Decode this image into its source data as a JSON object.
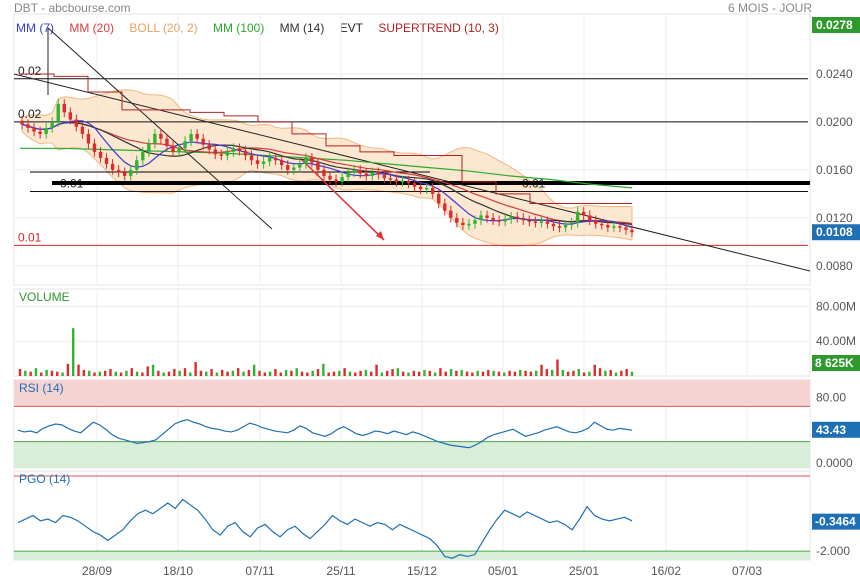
{
  "header": {
    "ticker_source": "DBT - abcbourse.com",
    "period": "6 MOIS - JOUR"
  },
  "legend": [
    {
      "label": "MM (7)",
      "color": "#3b3bd8"
    },
    {
      "label": "MM (20)",
      "color": "#d83c3c"
    },
    {
      "label": "BOLL (20, 2)",
      "color": "#e8a060"
    },
    {
      "label": "MM (100)",
      "color": "#2aaa2a"
    },
    {
      "label": "MM (14)",
      "color": "#333333"
    },
    {
      "label": "EVT",
      "color": "#222222"
    },
    {
      "label": "SUPERTREND (10, 3)",
      "color": "#b22222"
    }
  ],
  "colors": {
    "up": "#2fb52f",
    "down": "#dd2a2a",
    "accent": "#1f6fb5",
    "last_price_bg": "#1f6fb5",
    "top_badge_bg": "#2e9a2e",
    "volume_badge_bg": "#2e9a2e",
    "rsi_line": "#1f6fb5",
    "pgo_line": "#1f6fb5",
    "overbought_fill": "#f6d3d3",
    "oversold_fill": "#d8eed8"
  },
  "chart_data": [
    {
      "type": "candlestick",
      "name": "price",
      "x_tick_labels": [
        "28/09",
        "18/10",
        "07/11",
        "25/11",
        "15/12",
        "05/01",
        "25/01",
        "16/02",
        "07/03"
      ],
      "y_tick_labels": [
        "0.0278",
        "0.0240",
        "0.0200",
        "0.0160",
        "0.0120",
        "0.0108",
        "0.0080"
      ],
      "ylim": [
        0.0064,
        0.029
      ],
      "last_price_label": "0.0108",
      "top_badge_label": "0.0278",
      "hline_labels": [
        {
          "text": "0.02",
          "value": 0.0236
        },
        {
          "text": "0.02",
          "value": 0.02
        },
        {
          "text": "0.01",
          "value": 0.0142
        },
        {
          "text": "0.01",
          "value": 0.0142
        },
        {
          "text": "0.01",
          "value": 0.0097
        }
      ],
      "close": [
        0.0198,
        0.0195,
        0.0192,
        0.019,
        0.0195,
        0.02,
        0.0215,
        0.0208,
        0.0202,
        0.0196,
        0.019,
        0.0182,
        0.0175,
        0.017,
        0.0165,
        0.016,
        0.0158,
        0.0155,
        0.016,
        0.0168,
        0.0175,
        0.0182,
        0.019,
        0.0186,
        0.018,
        0.0175,
        0.0178,
        0.0184,
        0.019,
        0.0186,
        0.0181,
        0.0177,
        0.0173,
        0.0172,
        0.0175,
        0.0178,
        0.0176,
        0.0172,
        0.0168,
        0.0165,
        0.0167,
        0.017,
        0.0168,
        0.0164,
        0.016,
        0.0162,
        0.0165,
        0.017,
        0.0166,
        0.016,
        0.0155,
        0.0152,
        0.015,
        0.0154,
        0.0158,
        0.016,
        0.0157,
        0.0155,
        0.0158,
        0.0156,
        0.0153,
        0.0152,
        0.015,
        0.0151,
        0.0149,
        0.0146,
        0.0144,
        0.0145,
        0.014,
        0.0132,
        0.0126,
        0.012,
        0.0116,
        0.0114,
        0.0115,
        0.0118,
        0.0122,
        0.012,
        0.0118,
        0.0117,
        0.0119,
        0.0121,
        0.012,
        0.0118,
        0.0117,
        0.0116,
        0.0117,
        0.0115,
        0.0113,
        0.0112,
        0.0114,
        0.0116,
        0.0125,
        0.0122,
        0.0118,
        0.0115,
        0.0114,
        0.0112,
        0.0113,
        0.0112,
        0.011,
        0.0108
      ],
      "ma100": [
        0.0178,
        0.0178,
        0.0177,
        0.0176,
        0.0175,
        0.0174,
        0.0172,
        0.017,
        0.0168,
        0.0165,
        0.0162,
        0.0159,
        0.0155,
        0.0152,
        0.0148,
        0.0145
      ],
      "supertrend": [
        0.024,
        0.0238,
        0.0225,
        0.021,
        0.021,
        0.0208,
        0.0205,
        0.02,
        0.019,
        0.018,
        0.0175,
        0.0172,
        0.0172,
        0.015,
        0.014,
        0.0132,
        0.0132,
        0.0132
      ]
    },
    {
      "type": "bar",
      "name": "VOLUME",
      "y_tick_labels": [
        "80.00M",
        "40.00M"
      ],
      "ylim": [
        0,
        100
      ],
      "last_value_label": "8 625K",
      "values": [
        8,
        6,
        5,
        9,
        4,
        7,
        6,
        5,
        4,
        14,
        55,
        13,
        7,
        6,
        4,
        5,
        6,
        8,
        5,
        4,
        6,
        9,
        5,
        4,
        11,
        13,
        6,
        4,
        5,
        8,
        6,
        9,
        4,
        16,
        6,
        5,
        8,
        4,
        7,
        5,
        6,
        9,
        5,
        7,
        13,
        6,
        4,
        5,
        8,
        4,
        7,
        6,
        9,
        5,
        4,
        6,
        8,
        14,
        4,
        5,
        6,
        9,
        5,
        4,
        6,
        7,
        5,
        13,
        4,
        6,
        8,
        9,
        5,
        4,
        6,
        5,
        7,
        6,
        4,
        9,
        5,
        8,
        6,
        7,
        5,
        4,
        6,
        5,
        7,
        6,
        5,
        4,
        6,
        5,
        7,
        6,
        5,
        6,
        13,
        8,
        7,
        19,
        7,
        5,
        6,
        8,
        4,
        5,
        13,
        9,
        6,
        7,
        4,
        6,
        8,
        5
      ],
      "colors_up": [
        false,
        true,
        false,
        true,
        false,
        true,
        false,
        false,
        true,
        false,
        true,
        false,
        false,
        true,
        false,
        true,
        false,
        false,
        true,
        false,
        true,
        false,
        true,
        false,
        false,
        true,
        false,
        true,
        false,
        false,
        true,
        false,
        true,
        false,
        false,
        true,
        false,
        true,
        false,
        false,
        true,
        false,
        true,
        false,
        true,
        false,
        false,
        true,
        false,
        false,
        true,
        false,
        true,
        false,
        false,
        true,
        false,
        true,
        false,
        false,
        true,
        false,
        true,
        false,
        false,
        true,
        false,
        false,
        true,
        false,
        false,
        true,
        false,
        true,
        false,
        false,
        true,
        false,
        true,
        false,
        false,
        true,
        false,
        true,
        false,
        false,
        true,
        false,
        false,
        true,
        false,
        true,
        false,
        false,
        true,
        false,
        false,
        true,
        false,
        false,
        true,
        false,
        true,
        false,
        false,
        true,
        false,
        true,
        false,
        false,
        true,
        false,
        true,
        false,
        false,
        true
      ]
    },
    {
      "type": "line",
      "name": "RSI (14)",
      "y_tick_labels": [
        "80.00",
        "43.43",
        "0.0000"
      ],
      "ylim": [
        0,
        100
      ],
      "overbought": 70,
      "oversold": 30,
      "last_value_label": "43.43",
      "values": [
        43,
        41,
        42,
        40,
        45,
        48,
        50,
        49,
        45,
        42,
        40,
        46,
        52,
        49,
        44,
        38,
        34,
        32,
        30,
        28,
        29,
        30,
        32,
        38,
        44,
        50,
        53,
        55,
        52,
        50,
        47,
        45,
        44,
        42,
        41,
        43,
        47,
        51,
        49,
        46,
        44,
        42,
        41,
        40,
        43,
        48,
        45,
        40,
        38,
        36,
        39,
        44,
        47,
        43,
        39,
        37,
        39,
        42,
        41,
        39,
        42,
        40,
        38,
        41,
        39,
        36,
        33,
        30,
        28,
        26,
        25,
        24,
        23,
        26,
        30,
        35,
        38,
        40,
        42,
        44,
        40,
        36,
        38,
        40,
        43,
        45,
        47,
        44,
        41,
        40,
        42,
        45,
        52,
        48,
        44,
        43,
        45,
        44,
        43
      ]
    },
    {
      "type": "line",
      "name": "PGO (14)",
      "y_tick_labels": [
        "-0.3464",
        "-2.000"
      ],
      "ylim": [
        -2.5,
        2.5
      ],
      "last_value_label": "-0.3464",
      "values": [
        -0.4,
        -0.2,
        0.0,
        -0.3,
        -0.2,
        -0.4,
        0.0,
        -0.1,
        -0.3,
        -0.6,
        -0.9,
        -1.1,
        -1.4,
        -1.1,
        -0.8,
        -0.3,
        0.1,
        0.3,
        0.1,
        0.4,
        0.7,
        0.4,
        0.9,
        0.6,
        0.3,
        -0.2,
        -0.8,
        -1.1,
        -0.6,
        -0.4,
        -0.9,
        -1.2,
        -0.7,
        -0.5,
        -0.9,
        -1.2,
        -0.8,
        -0.6,
        -1.0,
        -1.3,
        -0.9,
        -0.5,
        0.0,
        -0.3,
        -0.5,
        -0.2,
        -0.4,
        -0.6,
        -0.4,
        -0.5,
        -0.8,
        -0.5,
        -0.7,
        -0.9,
        -1.1,
        -1.3,
        -1.7,
        -2.3,
        -2.4,
        -2.2,
        -2.3,
        -2.2,
        -1.5,
        -0.8,
        -0.2,
        0.3,
        0.1,
        -0.1,
        0.2,
        0.0,
        -0.2,
        -0.4,
        -0.3,
        -0.5,
        -0.8,
        -0.2,
        0.5,
        0.0,
        -0.2,
        -0.3,
        -0.2,
        -0.1,
        -0.3
      ]
    }
  ]
}
